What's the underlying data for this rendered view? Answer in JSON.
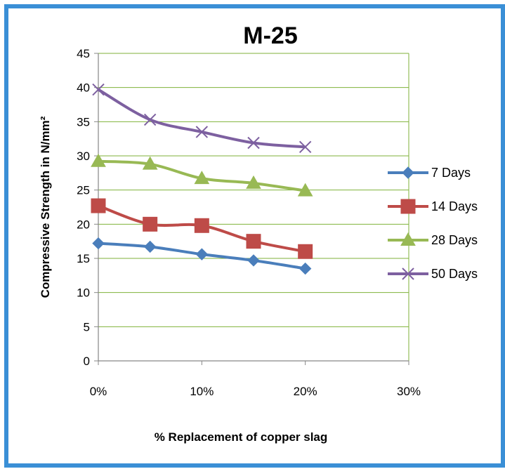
{
  "chart_data": {
    "type": "line",
    "title": "M-25",
    "xlabel": "% Replacement of copper slag",
    "ylabel": "Compressive Strength in N/mm²",
    "x": [
      0,
      5,
      10,
      15,
      20
    ],
    "x_tick_values": [
      0,
      10,
      20,
      30
    ],
    "x_tick_labels": [
      "0%",
      "10%",
      "20%",
      "30%"
    ],
    "xlim": [
      0,
      30
    ],
    "ylim": [
      0,
      45
    ],
    "y_tick_values": [
      0,
      5,
      10,
      15,
      20,
      25,
      30,
      35,
      40,
      45
    ],
    "grid": "horizontal",
    "legend_position": "right",
    "series": [
      {
        "name": "7 Days",
        "values": [
          17.2,
          16.7,
          15.6,
          14.7,
          13.5
        ],
        "color": "#4a7ebb",
        "marker": "diamond"
      },
      {
        "name": "14 Days",
        "values": [
          22.7,
          20.0,
          19.8,
          17.5,
          16.0
        ],
        "color": "#be4b48",
        "marker": "square"
      },
      {
        "name": "28 Days",
        "values": [
          29.2,
          28.8,
          26.7,
          26.0,
          24.9
        ],
        "color": "#98b954",
        "marker": "triangle"
      },
      {
        "name": "50 Days",
        "values": [
          39.7,
          35.3,
          33.5,
          31.9,
          31.3
        ],
        "color": "#7d60a0",
        "marker": "x"
      }
    ]
  }
}
